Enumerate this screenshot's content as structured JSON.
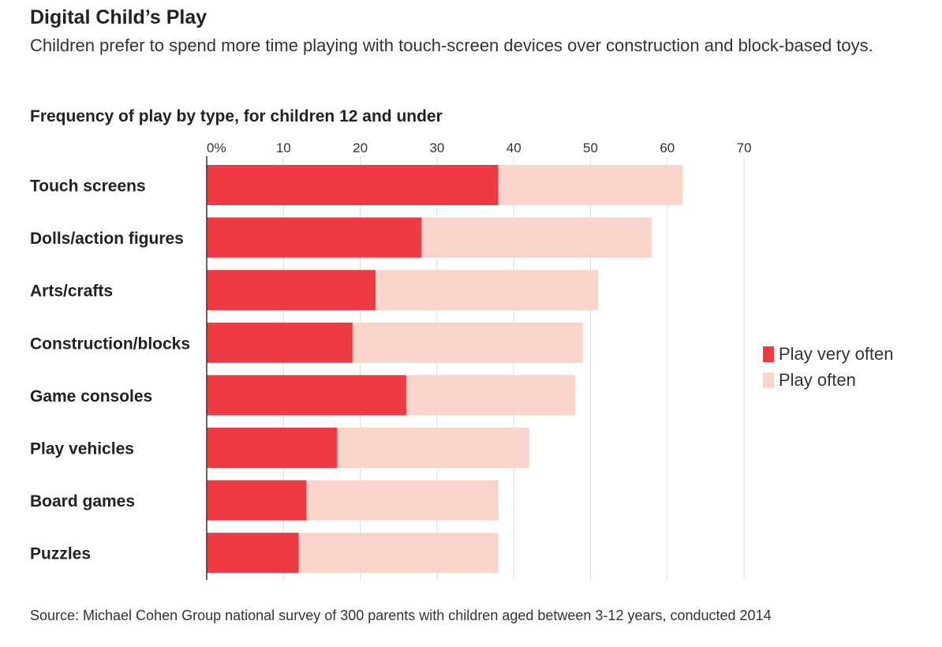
{
  "title": "Digital Child’s Play",
  "subtitle": "Children prefer to spend more time playing with touch-screen devices over construction and block-based toys.",
  "chart_heading": "Frequency of play by type, for children 12 and under",
  "source": "Source: Michael Cohen Group national survey of 300 parents with children aged between 3-12 years, conducted 2014",
  "colors": {
    "very_often": "#ee3a43",
    "often": "#fad4ca",
    "grid": "#dddddd",
    "axis": "#333333"
  },
  "chart_data": {
    "type": "bar",
    "orientation": "horizontal",
    "stacked": true,
    "title": "Frequency of play by type, for children 12 and under",
    "xlabel": "",
    "ylabel": "",
    "xlim": [
      0,
      70
    ],
    "ticks": [
      0,
      10,
      20,
      30,
      40,
      50,
      60,
      70
    ],
    "tick_labels": [
      "0%",
      "10",
      "20",
      "30",
      "40",
      "50",
      "60",
      "70"
    ],
    "grid": true,
    "legend_position": "right",
    "categories": [
      "Touch screens",
      "Dolls/action figures",
      "Arts/crafts",
      "Construction/blocks",
      "Game consoles",
      "Play vehicles",
      "Board games",
      "Puzzles"
    ],
    "series": [
      {
        "name": "Play very often",
        "values": [
          38,
          28,
          22,
          19,
          26,
          17,
          13,
          12
        ]
      },
      {
        "name": "Play often",
        "values": [
          24,
          30,
          29,
          30,
          22,
          25,
          25,
          26
        ]
      }
    ]
  }
}
